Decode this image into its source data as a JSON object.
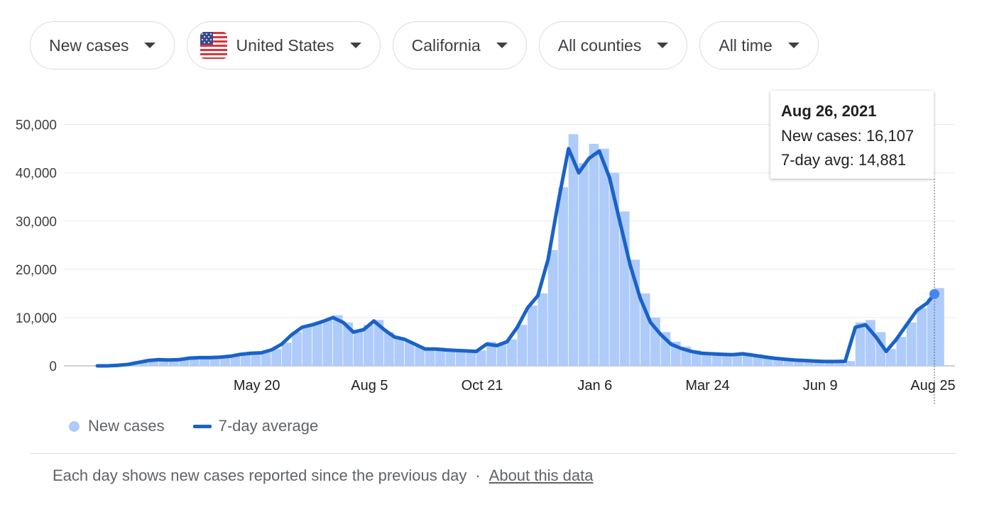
{
  "filters": {
    "metric": "New cases",
    "country": "United States",
    "region": "California",
    "county": "All counties",
    "period": "All time"
  },
  "colors": {
    "bar": "#aecbfa",
    "line": "#1a62c9",
    "marker": "#4285f4",
    "grid": "#e8eaed"
  },
  "tooltip": {
    "date": "Aug 26, 2021",
    "new_cases_text": "New cases: 16,107",
    "avg_text": "7-day avg: 14,881"
  },
  "legend": {
    "bars_label": "New cases",
    "line_label": "7-day average"
  },
  "footer": {
    "note": "Each day shows new cases reported since the previous day",
    "separator": "·",
    "link": "About this data"
  },
  "chart_data": {
    "type": "bar",
    "x_unit": "week starting",
    "ylim": [
      0,
      57000
    ],
    "yticks": [
      {
        "value": 0,
        "label": "0"
      },
      {
        "value": 10000,
        "label": "10,000"
      },
      {
        "value": 20000,
        "label": "20,000"
      },
      {
        "value": 30000,
        "label": "30,000"
      },
      {
        "value": 40000,
        "label": "40,000"
      },
      {
        "value": 50000,
        "label": "50,000"
      }
    ],
    "xticks": [
      {
        "date": "2020-05-20",
        "label": "May 20"
      },
      {
        "date": "2020-08-05",
        "label": "Aug 5"
      },
      {
        "date": "2020-10-21",
        "label": "Oct 21"
      },
      {
        "date": "2021-01-06",
        "label": "Jan 6"
      },
      {
        "date": "2021-03-24",
        "label": "Mar 24"
      },
      {
        "date": "2021-06-09",
        "label": "Jun 9"
      },
      {
        "date": "2021-08-25",
        "label": "Aug 25"
      }
    ],
    "x_range": [
      "2020-02-01",
      "2021-08-26"
    ],
    "series": [
      {
        "name": "New cases",
        "type": "bar",
        "x": [
          "2020-02-01",
          "2020-02-08",
          "2020-02-15",
          "2020-02-22",
          "2020-02-29",
          "2020-03-07",
          "2020-03-14",
          "2020-03-21",
          "2020-03-28",
          "2020-04-04",
          "2020-04-11",
          "2020-04-18",
          "2020-04-25",
          "2020-05-02",
          "2020-05-09",
          "2020-05-16",
          "2020-05-23",
          "2020-05-30",
          "2020-06-06",
          "2020-06-13",
          "2020-06-20",
          "2020-06-27",
          "2020-07-04",
          "2020-07-11",
          "2020-07-18",
          "2020-07-25",
          "2020-08-01",
          "2020-08-08",
          "2020-08-15",
          "2020-08-22",
          "2020-08-29",
          "2020-09-05",
          "2020-09-12",
          "2020-09-19",
          "2020-09-26",
          "2020-10-03",
          "2020-10-10",
          "2020-10-17",
          "2020-10-24",
          "2020-10-31",
          "2020-11-07",
          "2020-11-14",
          "2020-11-21",
          "2020-11-28",
          "2020-12-05",
          "2020-12-12",
          "2020-12-19",
          "2020-12-26",
          "2021-01-02",
          "2021-01-09",
          "2021-01-16",
          "2021-01-23",
          "2021-01-30",
          "2021-02-06",
          "2021-02-13",
          "2021-02-20",
          "2021-02-27",
          "2021-03-06",
          "2021-03-13",
          "2021-03-20",
          "2021-03-27",
          "2021-04-03",
          "2021-04-10",
          "2021-04-17",
          "2021-04-24",
          "2021-05-01",
          "2021-05-08",
          "2021-05-15",
          "2021-05-22",
          "2021-05-29",
          "2021-06-05",
          "2021-06-12",
          "2021-06-19",
          "2021-06-26",
          "2021-07-03",
          "2021-07-10",
          "2021-07-17",
          "2021-07-24",
          "2021-07-31",
          "2021-08-07",
          "2021-08-14",
          "2021-08-21",
          "2021-08-26"
        ],
        "values": [
          0,
          0,
          100,
          300,
          700,
          1100,
          1300,
          1200,
          1400,
          1700,
          1800,
          1700,
          1800,
          2100,
          2500,
          2600,
          2800,
          3500,
          4800,
          7000,
          8200,
          8900,
          9500,
          10500,
          9000,
          7500,
          8500,
          9500,
          7000,
          5800,
          5000,
          4000,
          3500,
          3800,
          3300,
          3200,
          3100,
          3200,
          5000,
          4500,
          5500,
          8500,
          12500,
          15000,
          24000,
          37000,
          48000,
          42000,
          46000,
          45000,
          40000,
          32000,
          22000,
          15000,
          10000,
          7000,
          5000,
          4000,
          3200,
          2800,
          2700,
          2600,
          2500,
          2700,
          2400,
          2000,
          1700,
          1500,
          1300,
          1200,
          1000,
          900,
          950,
          1000,
          9000,
          9500,
          7000,
          3500,
          6000,
          9000,
          12000,
          14000,
          16107
        ]
      },
      {
        "name": "7-day average",
        "type": "line",
        "x": [
          "2020-02-01",
          "2020-02-08",
          "2020-02-15",
          "2020-02-22",
          "2020-02-29",
          "2020-03-07",
          "2020-03-14",
          "2020-03-21",
          "2020-03-28",
          "2020-04-04",
          "2020-04-11",
          "2020-04-18",
          "2020-04-25",
          "2020-05-02",
          "2020-05-09",
          "2020-05-16",
          "2020-05-23",
          "2020-05-30",
          "2020-06-06",
          "2020-06-13",
          "2020-06-20",
          "2020-06-27",
          "2020-07-04",
          "2020-07-11",
          "2020-07-18",
          "2020-07-25",
          "2020-08-01",
          "2020-08-08",
          "2020-08-15",
          "2020-08-22",
          "2020-08-29",
          "2020-09-05",
          "2020-09-12",
          "2020-09-19",
          "2020-09-26",
          "2020-10-03",
          "2020-10-10",
          "2020-10-17",
          "2020-10-24",
          "2020-10-31",
          "2020-11-07",
          "2020-11-14",
          "2020-11-21",
          "2020-11-28",
          "2020-12-05",
          "2020-12-12",
          "2020-12-19",
          "2020-12-26",
          "2021-01-02",
          "2021-01-09",
          "2021-01-16",
          "2021-01-23",
          "2021-01-30",
          "2021-02-06",
          "2021-02-13",
          "2021-02-20",
          "2021-02-27",
          "2021-03-06",
          "2021-03-13",
          "2021-03-20",
          "2021-03-27",
          "2021-04-03",
          "2021-04-10",
          "2021-04-17",
          "2021-04-24",
          "2021-05-01",
          "2021-05-08",
          "2021-05-15",
          "2021-05-22",
          "2021-05-29",
          "2021-06-05",
          "2021-06-12",
          "2021-06-19",
          "2021-06-26",
          "2021-07-03",
          "2021-07-10",
          "2021-07-17",
          "2021-07-24",
          "2021-07-31",
          "2021-08-07",
          "2021-08-14",
          "2021-08-21",
          "2021-08-26"
        ],
        "values": [
          0,
          0,
          100,
          300,
          700,
          1100,
          1300,
          1200,
          1300,
          1600,
          1700,
          1700,
          1800,
          2000,
          2400,
          2600,
          2700,
          3300,
          4500,
          6500,
          8000,
          8500,
          9200,
          10000,
          9000,
          7000,
          7500,
          9300,
          7500,
          6000,
          5500,
          4500,
          3500,
          3500,
          3300,
          3200,
          3100,
          3000,
          4500,
          4200,
          5000,
          8000,
          12000,
          14500,
          22000,
          34000,
          45000,
          40000,
          43000,
          44500,
          39000,
          30000,
          21000,
          14000,
          9000,
          6500,
          4500,
          3600,
          3000,
          2600,
          2500,
          2400,
          2300,
          2500,
          2200,
          1900,
          1600,
          1400,
          1200,
          1100,
          1000,
          900,
          900,
          950,
          8000,
          8500,
          6000,
          3000,
          5500,
          8500,
          11500,
          13000,
          14881
        ]
      }
    ]
  }
}
